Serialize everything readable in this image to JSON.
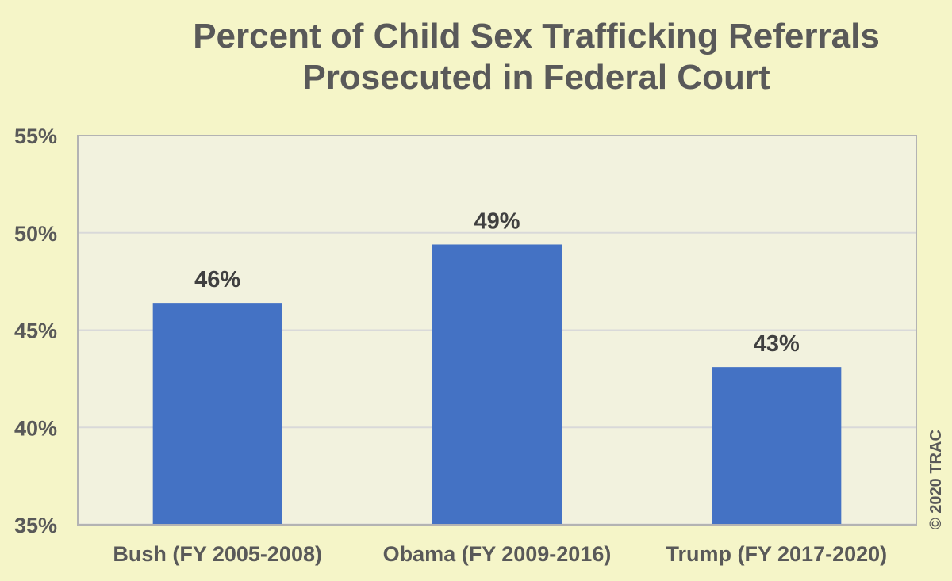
{
  "chart_data": {
    "type": "bar",
    "title": [
      "Percent of  Child Sex Trafficking Referrals",
      "Prosecuted in Federal Court"
    ],
    "xlabel": "",
    "ylabel": "",
    "categories": [
      "Bush (FY 2005-2008)",
      "Obama (FY 2009-2016)",
      "Trump (FY 2017-2020)"
    ],
    "values": [
      46.4,
      49.4,
      43.1
    ],
    "data_labels": [
      "46%",
      "49%",
      "43%"
    ],
    "ylim": [
      35,
      55
    ],
    "yticks": [
      35,
      40,
      45,
      50,
      55
    ],
    "ytick_labels": [
      "35%",
      "40%",
      "45%",
      "50%",
      "55%"
    ],
    "grid": true,
    "legend": "none",
    "colors": {
      "bar": "#4472c4",
      "plot_bg": "#f2f2de",
      "page_bg": "#f5f5c8",
      "gridline": "#d9d9d9",
      "axis_border": "#b3b3b3",
      "text": "#595959"
    },
    "credit": "© 2020 TRAC"
  }
}
